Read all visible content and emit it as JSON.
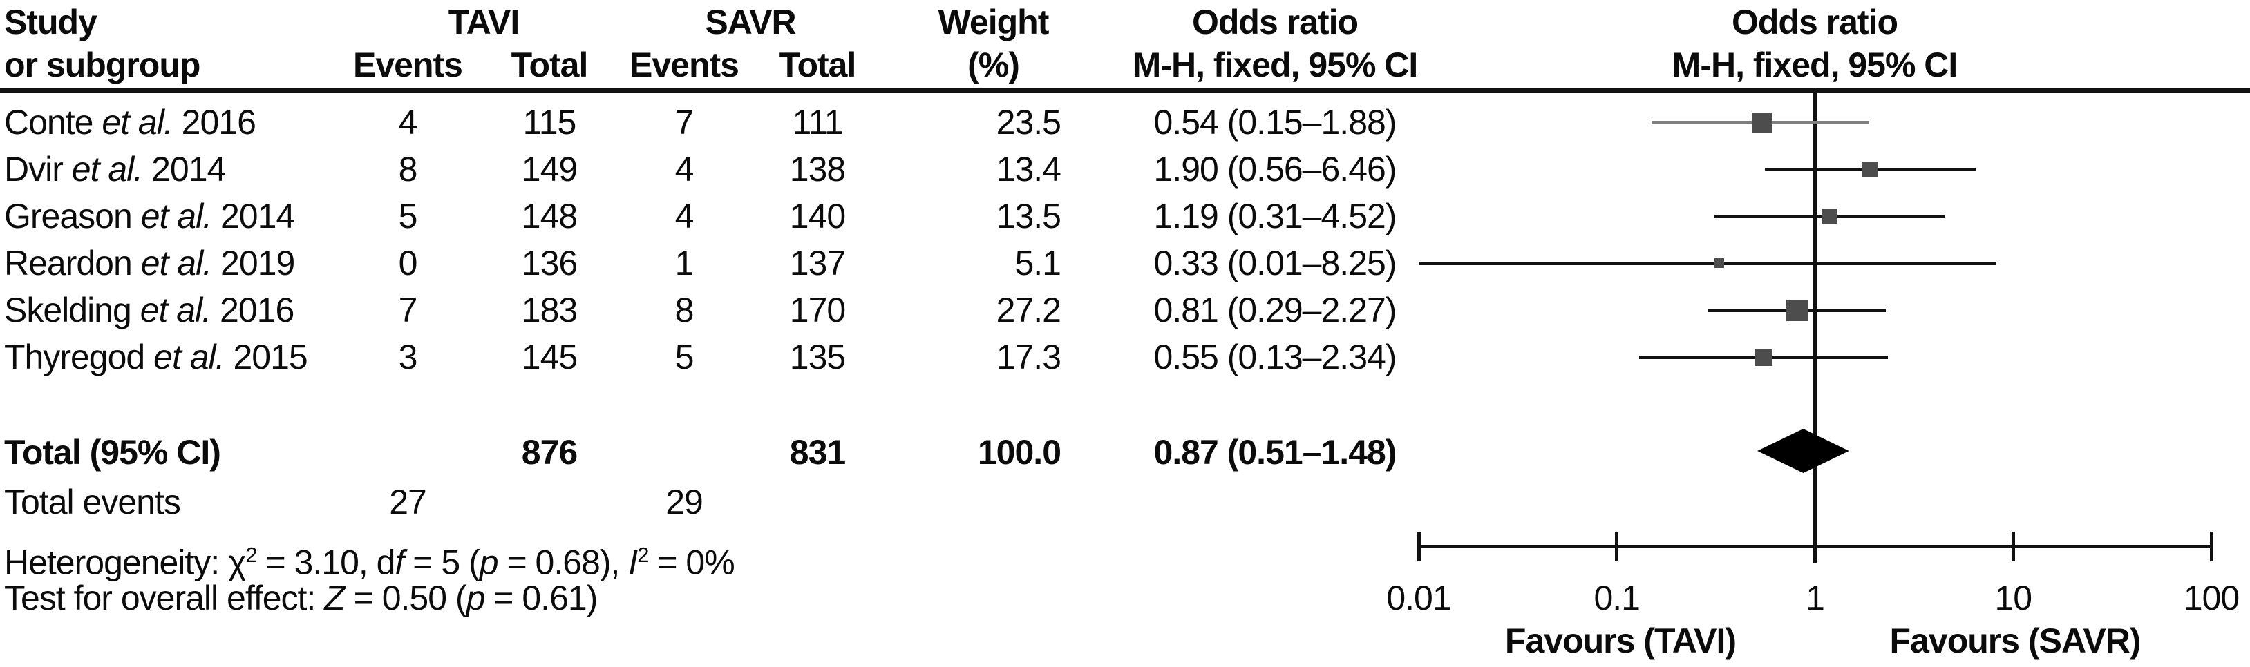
{
  "header": {
    "study_line1": "Study",
    "study_line2": "or subgroup",
    "group1": "TAVI",
    "group2": "SAVR",
    "events": "Events",
    "total": "Total",
    "weight_line1": "Weight",
    "weight_line2": "(%)",
    "or_line1": "Odds ratio",
    "or_line2": "M-H, fixed, 95% CI",
    "plot_or_line1": "Odds ratio",
    "plot_or_line2": "M-H, fixed, 95% CI"
  },
  "table": {
    "rows": [
      {
        "author": "Conte",
        "etal": "et al.",
        "year": "2016",
        "tavi_events": "4",
        "tavi_total": "115",
        "savr_events": "7",
        "savr_total": "111",
        "weight": "23.5",
        "or_ci": "0.54 (0.15–1.88)"
      },
      {
        "author": "Dvir",
        "etal": "et al.",
        "year": "2014",
        "tavi_events": "8",
        "tavi_total": "149",
        "savr_events": "4",
        "savr_total": "138",
        "weight": "13.4",
        "or_ci": "1.90 (0.56–6.46)"
      },
      {
        "author": "Greason",
        "etal": "et al.",
        "year": "2014",
        "tavi_events": "5",
        "tavi_total": "148",
        "savr_events": "4",
        "savr_total": "140",
        "weight": "13.5",
        "or_ci": "1.19 (0.31–4.52)"
      },
      {
        "author": "Reardon",
        "etal": "et al.",
        "year": "2019",
        "tavi_events": "0",
        "tavi_total": "136",
        "savr_events": "1",
        "savr_total": "137",
        "weight": "5.1",
        "or_ci": "0.33 (0.01–8.25)"
      },
      {
        "author": "Skelding",
        "etal": "et al.",
        "year": "2016",
        "tavi_events": "7",
        "tavi_total": "183",
        "savr_events": "8",
        "savr_total": "170",
        "weight": "27.2",
        "or_ci": "0.81 (0.29–2.27)"
      },
      {
        "author": "Thyregod",
        "etal": "et al.",
        "year": "2015",
        "tavi_events": "3",
        "tavi_total": "145",
        "savr_events": "5",
        "savr_total": "135",
        "weight": "17.3",
        "or_ci": "0.55 (0.13–2.34)"
      }
    ],
    "total_row": {
      "label": "Total (95% CI)",
      "tavi_total": "876",
      "savr_total": "831",
      "weight": "100.0",
      "or_ci": "0.87 (0.51–1.48)"
    },
    "total_events": {
      "label": "Total events",
      "tavi": "27",
      "savr": "29"
    }
  },
  "stats": {
    "het": {
      "prefix": "Heterogeneity: χ",
      "sup1": "2",
      "mid1": " = 3.10, d",
      "it1": "f",
      "mid2": " = 5 (",
      "it2": "p",
      "mid3": " = 0.68), ",
      "it3": "I",
      "sup2": "2",
      "suffix": " = 0%"
    },
    "effect": {
      "prefix": "Test for overall effect: ",
      "it1": "Z",
      "mid1": " = 0.50 (",
      "it2": "p",
      "suffix": " = 0.61)"
    }
  },
  "chart_data": {
    "type": "forest",
    "x_scale": "log10",
    "x_range": [
      0.01,
      100
    ],
    "x_ticks": [
      0.01,
      0.1,
      1,
      10,
      100
    ],
    "x_tick_labels": [
      "0.01",
      "0.1",
      "1",
      "10",
      "100"
    ],
    "null_line_value": 1,
    "effect_measure": "Odds ratio, M-H, fixed, 95% CI",
    "studies": [
      {
        "label": "Conte et al. 2016",
        "or": 0.54,
        "lo": 0.15,
        "hi": 1.88,
        "weight": 23.5,
        "ci_color": "#7f7f7f"
      },
      {
        "label": "Dvir et al. 2014",
        "or": 1.9,
        "lo": 0.56,
        "hi": 6.46,
        "weight": 13.4,
        "ci_color": "#111111"
      },
      {
        "label": "Greason et al. 2014",
        "or": 1.19,
        "lo": 0.31,
        "hi": 4.52,
        "weight": 13.5,
        "ci_color": "#111111"
      },
      {
        "label": "Reardon et al. 2019",
        "or": 0.33,
        "lo": 0.01,
        "hi": 8.25,
        "weight": 5.1,
        "ci_color": "#111111"
      },
      {
        "label": "Skelding et al. 2016",
        "or": 0.81,
        "lo": 0.29,
        "hi": 2.27,
        "weight": 27.2,
        "ci_color": "#111111"
      },
      {
        "label": "Thyregod et al. 2015",
        "or": 0.55,
        "lo": 0.13,
        "hi": 2.34,
        "weight": 17.3,
        "ci_color": "#111111"
      }
    ],
    "total": {
      "label": "Total (95% CI)",
      "or": 0.87,
      "lo": 0.51,
      "hi": 1.48,
      "weight": 100.0
    },
    "marker_color": "#4d4d4d",
    "diamond_color": "#000000",
    "axis_color": "#111111",
    "favours_left": "Favours (TAVI)",
    "favours_right": "Favours (SAVR)"
  }
}
